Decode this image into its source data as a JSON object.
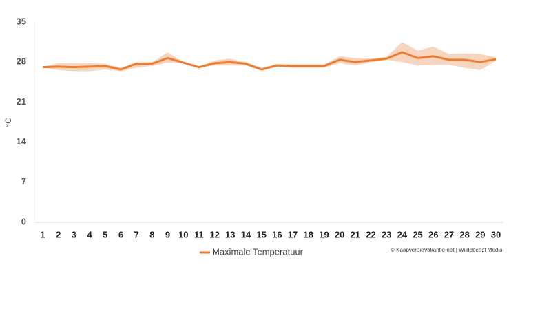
{
  "chart_data": {
    "type": "line",
    "y_label": "°C",
    "categories": [
      "1",
      "2",
      "3",
      "4",
      "5",
      "6",
      "7",
      "8",
      "9",
      "10",
      "11",
      "12",
      "13",
      "14",
      "15",
      "16",
      "17",
      "18",
      "19",
      "20",
      "21",
      "22",
      "23",
      "24",
      "25",
      "26",
      "27",
      "28",
      "29",
      "30"
    ],
    "series": [
      {
        "name": "Maximale Temperatuur",
        "color": "#ed7d31",
        "values": [
          27.1,
          27.2,
          27.1,
          27.2,
          27.3,
          26.7,
          27.7,
          27.7,
          28.7,
          27.9,
          27.1,
          27.8,
          28.0,
          27.7,
          26.7,
          27.4,
          27.3,
          27.3,
          27.3,
          28.4,
          28.0,
          28.3,
          28.6,
          29.7,
          28.7,
          29.0,
          28.4,
          28.4,
          28.0,
          28.5
        ]
      }
    ],
    "band": {
      "color": "#f8d5bf",
      "high": [
        27.2,
        27.8,
        27.8,
        27.8,
        27.7,
        27.0,
        28.0,
        28.0,
        29.7,
        28.0,
        27.2,
        28.3,
        28.6,
        28.0,
        27.0,
        27.7,
        27.6,
        27.6,
        27.6,
        29.0,
        28.7,
        28.6,
        28.9,
        31.5,
        30.0,
        30.7,
        29.4,
        29.5,
        29.4,
        28.8
      ],
      "low": [
        27.0,
        26.6,
        26.4,
        26.4,
        26.7,
        26.4,
        27.0,
        27.3,
        27.9,
        27.8,
        27.0,
        27.4,
        27.4,
        27.4,
        26.5,
        27.2,
        27.0,
        27.0,
        27.0,
        27.8,
        27.4,
        28.0,
        28.4,
        28.0,
        27.4,
        27.5,
        27.5,
        27.0,
        26.6,
        28.2
      ]
    },
    "ylim": [
      0,
      35
    ],
    "yticks": [
      0,
      7,
      14,
      21,
      28,
      35
    ],
    "grid": false,
    "credit": "© KaapverdieVakantie.net | Wildebeast Media"
  }
}
